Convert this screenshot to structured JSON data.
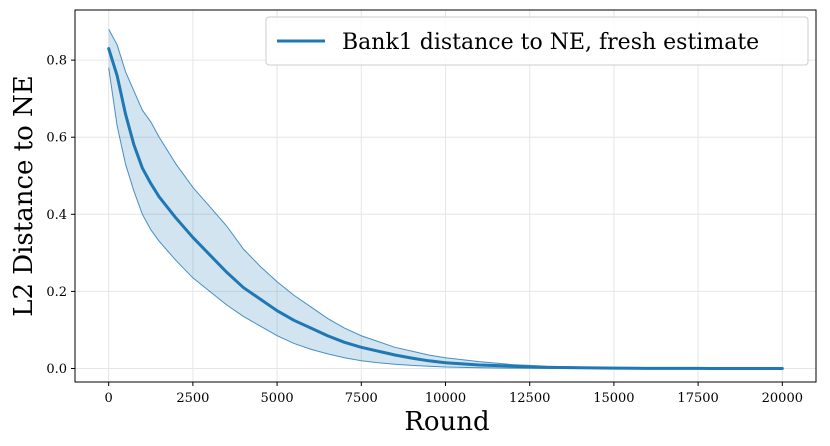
{
  "chart_data": {
    "type": "line",
    "title": "",
    "xlabel": "Round",
    "ylabel": "L2 Distance to NE",
    "xlim": [
      -1000,
      21000
    ],
    "ylim": [
      -0.035,
      0.93
    ],
    "xticks": [
      0,
      2500,
      5000,
      7500,
      10000,
      12500,
      15000,
      17500,
      20000
    ],
    "yticks": [
      0.0,
      0.2,
      0.4,
      0.6,
      0.8
    ],
    "xtick_labels": [
      "0",
      "2500",
      "5000",
      "7500",
      "10000",
      "12500",
      "15000",
      "17500",
      "20000"
    ],
    "ytick_labels": [
      "0.0",
      "0.2",
      "0.4",
      "0.6",
      "0.8"
    ],
    "grid": true,
    "legend_position": "top-right",
    "series": [
      {
        "name": "Bank1 distance to NE, fresh estimate",
        "color": "#1f77b4",
        "x": [
          0,
          250,
          500,
          750,
          1000,
          1250,
          1500,
          2000,
          2500,
          3000,
          3500,
          4000,
          4500,
          5000,
          5500,
          6000,
          6500,
          7000,
          7500,
          8000,
          8500,
          9000,
          9500,
          10000,
          11000,
          12000,
          12500,
          13000,
          14000,
          15000,
          16000,
          17000,
          17500,
          18000,
          19000,
          20000
        ],
        "y": [
          0.83,
          0.76,
          0.66,
          0.58,
          0.52,
          0.48,
          0.445,
          0.39,
          0.34,
          0.295,
          0.25,
          0.21,
          0.18,
          0.15,
          0.125,
          0.105,
          0.085,
          0.068,
          0.055,
          0.045,
          0.035,
          0.027,
          0.02,
          0.015,
          0.009,
          0.006,
          0.004,
          0.003,
          0.002,
          0.001,
          0.0005,
          0.0003,
          0.0002,
          0.0001,
          0.0,
          0.0
        ],
        "lower": [
          0.78,
          0.63,
          0.53,
          0.46,
          0.4,
          0.36,
          0.33,
          0.28,
          0.235,
          0.2,
          0.165,
          0.135,
          0.11,
          0.085,
          0.065,
          0.05,
          0.038,
          0.028,
          0.02,
          0.015,
          0.011,
          0.008,
          0.006,
          0.004,
          0.002,
          0.001,
          0.0008,
          0.0006,
          0.0003,
          0.0002,
          0.0001,
          0.0,
          0.0,
          0.0,
          0.0,
          0.0
        ],
        "upper": [
          0.88,
          0.84,
          0.77,
          0.72,
          0.67,
          0.64,
          0.6,
          0.53,
          0.47,
          0.42,
          0.37,
          0.31,
          0.265,
          0.225,
          0.19,
          0.16,
          0.13,
          0.105,
          0.085,
          0.07,
          0.055,
          0.045,
          0.035,
          0.028,
          0.018,
          0.01,
          0.008,
          0.006,
          0.004,
          0.003,
          0.002,
          0.0012,
          0.0008,
          0.0006,
          0.0003,
          0.0002
        ]
      }
    ]
  }
}
